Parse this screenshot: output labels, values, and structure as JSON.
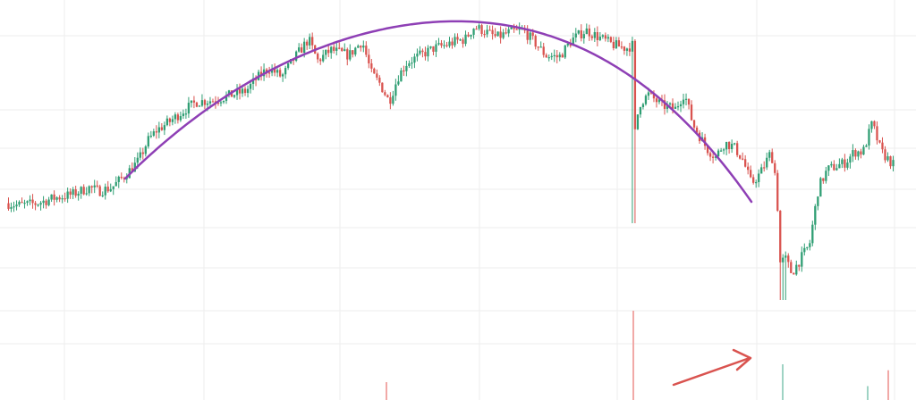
{
  "colors": {
    "background": "#ffffff",
    "grid": "#eeeeee",
    "up_candle": "#2f9e73",
    "down_candle": "#d9534f",
    "up_volume": "#9fd3c4",
    "down_volume": "#f1a9a7",
    "arc_line": "#8e3fb5",
    "annotation_arrow": "#d9534f"
  },
  "chart_data": {
    "type": "candlestick",
    "title": "",
    "xlabel": "",
    "ylabel": "",
    "grid": true,
    "legend": "none",
    "ylim": [
      -25,
      155
    ],
    "price_profile": [
      [
        0,
        52
      ],
      [
        20,
        50
      ],
      [
        40,
        51
      ],
      [
        60,
        54
      ],
      [
        80,
        56
      ],
      [
        100,
        60
      ],
      [
        110,
        58
      ],
      [
        125,
        60
      ],
      [
        140,
        67
      ],
      [
        155,
        75
      ],
      [
        165,
        86
      ],
      [
        175,
        92
      ],
      [
        190,
        97
      ],
      [
        205,
        103
      ],
      [
        220,
        108
      ],
      [
        240,
        109
      ],
      [
        260,
        112
      ],
      [
        275,
        114
      ],
      [
        285,
        120
      ],
      [
        300,
        127
      ],
      [
        315,
        122
      ],
      [
        330,
        133
      ],
      [
        345,
        143
      ],
      [
        355,
        131
      ],
      [
        370,
        137
      ],
      [
        390,
        134
      ],
      [
        405,
        142
      ],
      [
        415,
        124
      ],
      [
        425,
        118
      ],
      [
        435,
        108
      ],
      [
        445,
        122
      ],
      [
        455,
        130
      ],
      [
        470,
        134
      ],
      [
        485,
        138
      ],
      [
        500,
        140
      ],
      [
        510,
        142
      ],
      [
        520,
        143
      ],
      [
        530,
        150
      ],
      [
        540,
        148
      ],
      [
        555,
        144
      ],
      [
        570,
        147
      ],
      [
        585,
        148
      ],
      [
        600,
        140
      ],
      [
        610,
        134
      ],
      [
        625,
        133
      ],
      [
        640,
        143
      ],
      [
        655,
        148
      ],
      [
        670,
        144
      ],
      [
        685,
        140
      ],
      [
        700,
        138
      ],
      [
        708,
        140
      ],
      [
        709,
        90
      ],
      [
        715,
        107
      ],
      [
        725,
        112
      ],
      [
        740,
        106
      ],
      [
        755,
        104
      ],
      [
        765,
        113
      ],
      [
        775,
        95
      ],
      [
        790,
        82
      ],
      [
        800,
        77
      ],
      [
        810,
        85
      ],
      [
        820,
        83
      ],
      [
        830,
        76
      ],
      [
        840,
        62
      ],
      [
        850,
        68
      ],
      [
        862,
        80
      ],
      [
        868,
        63
      ],
      [
        872,
        18
      ],
      [
        878,
        20
      ],
      [
        885,
        12
      ],
      [
        895,
        20
      ],
      [
        905,
        28
      ],
      [
        915,
        60
      ],
      [
        925,
        70
      ],
      [
        945,
        74
      ],
      [
        955,
        80
      ],
      [
        965,
        80
      ],
      [
        975,
        96
      ],
      [
        985,
        80
      ],
      [
        1000,
        72
      ]
    ],
    "candle_count": 330,
    "fitted_arc": {
      "x": [
        140,
        300,
        520,
        700,
        840
      ],
      "y": [
        65,
        125,
        153,
        124,
        52
      ]
    },
    "volume_spikes": [
      {
        "x": 432,
        "value": 9,
        "direction": "down"
      },
      {
        "x": 708,
        "value": 45,
        "direction": "down"
      },
      {
        "x": 875,
        "value": 18,
        "direction": "up"
      },
      {
        "x": 993,
        "value": 15,
        "direction": "down"
      },
      {
        "x": 970,
        "value": 7,
        "direction": "up"
      }
    ]
  }
}
